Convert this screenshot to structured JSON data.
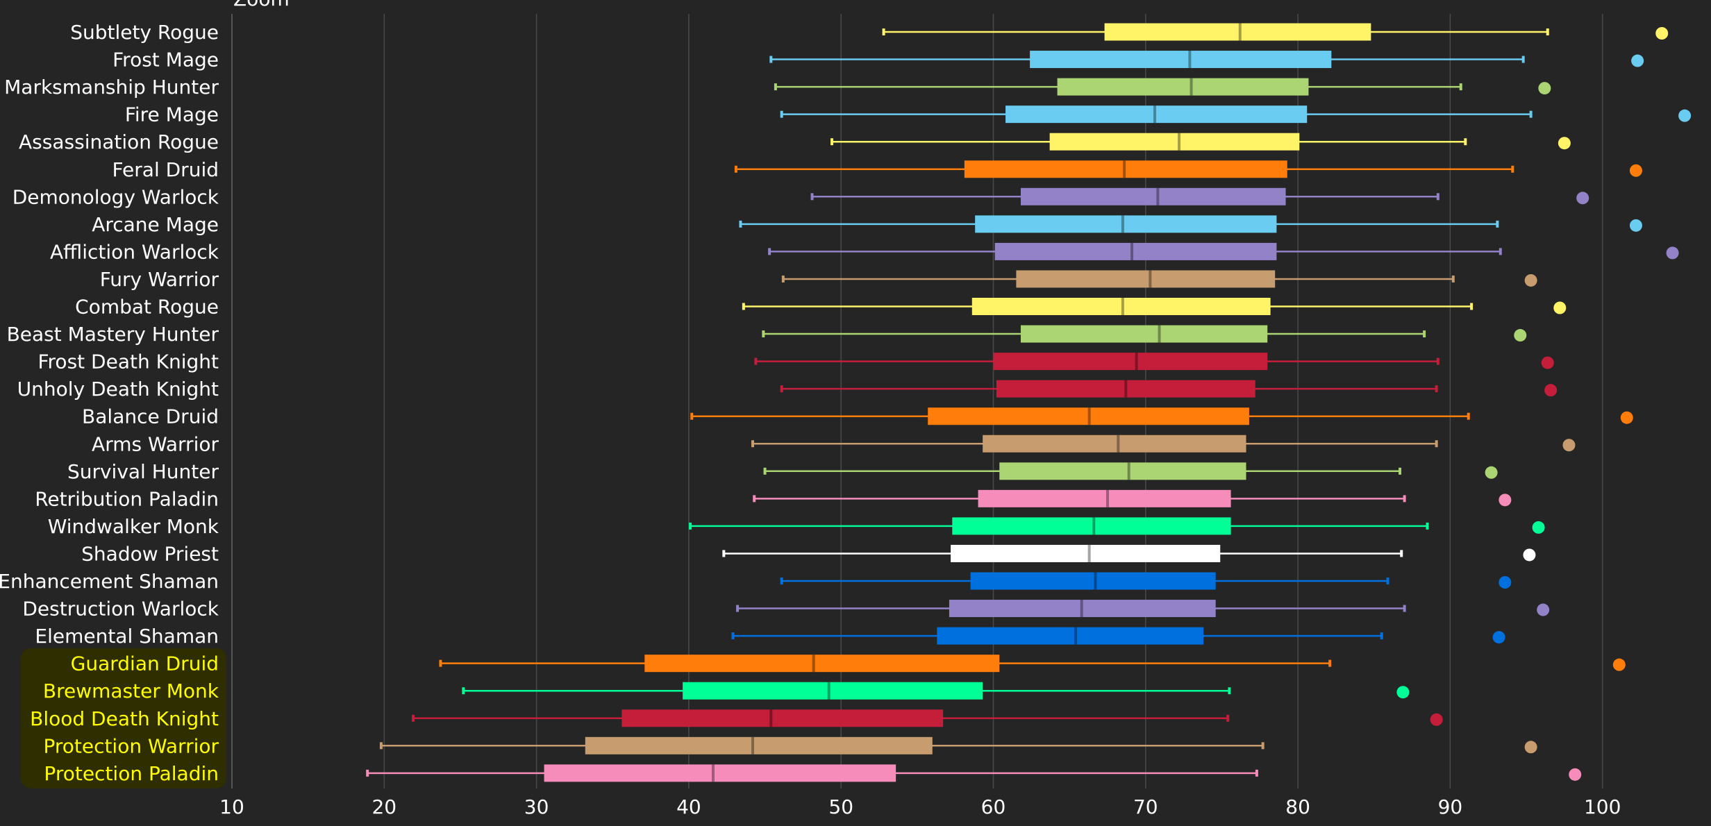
{
  "chart_data": {
    "type": "boxplot",
    "top_label": "Zoom",
    "title": "",
    "xlabel": "",
    "ylabel": "",
    "xlim": [
      10,
      102
    ],
    "x_ticks": [
      10,
      20,
      30,
      40,
      50,
      60,
      70,
      80,
      90,
      100
    ],
    "grid": true,
    "background": "#252525",
    "tank_highlight_color": "#2e2e00",
    "series": [
      {
        "name": "Subtlety Rogue",
        "color": "#fff468",
        "whisker_low": 52.8,
        "q1": 67.3,
        "median": 76.2,
        "q3": 84.8,
        "whisker_high": 96.4,
        "max": 103.9,
        "tank": false
      },
      {
        "name": "Frost Mage",
        "color": "#69ccf0",
        "whisker_low": 45.4,
        "q1": 62.4,
        "median": 72.9,
        "q3": 82.2,
        "whisker_high": 94.8,
        "max": 102.3,
        "tank": false
      },
      {
        "name": "Marksmanship Hunter",
        "color": "#abd473",
        "whisker_low": 45.7,
        "q1": 64.2,
        "median": 73.0,
        "q3": 80.7,
        "whisker_high": 90.7,
        "max": 96.2,
        "tank": false
      },
      {
        "name": "Fire Mage",
        "color": "#69ccf0",
        "whisker_low": 46.1,
        "q1": 60.8,
        "median": 70.6,
        "q3": 80.6,
        "whisker_high": 95.3,
        "max": 105.4,
        "tank": false
      },
      {
        "name": "Assassination Rogue",
        "color": "#fff468",
        "whisker_low": 49.4,
        "q1": 63.7,
        "median": 72.2,
        "q3": 80.1,
        "whisker_high": 91.0,
        "max": 97.5,
        "tank": false
      },
      {
        "name": "Feral Druid",
        "color": "#ff7d0a",
        "whisker_low": 43.1,
        "q1": 58.1,
        "median": 68.6,
        "q3": 79.3,
        "whisker_high": 94.1,
        "max": 102.2,
        "tank": false
      },
      {
        "name": "Demonology Warlock",
        "color": "#9482c9",
        "whisker_low": 48.1,
        "q1": 61.8,
        "median": 70.8,
        "q3": 79.2,
        "whisker_high": 89.2,
        "max": 98.7,
        "tank": false
      },
      {
        "name": "Arcane Mage",
        "color": "#69ccf0",
        "whisker_low": 43.4,
        "q1": 58.8,
        "median": 68.5,
        "q3": 78.6,
        "whisker_high": 93.1,
        "max": 102.2,
        "tank": false
      },
      {
        "name": "Affliction Warlock",
        "color": "#9482c9",
        "whisker_low": 45.3,
        "q1": 60.1,
        "median": 69.1,
        "q3": 78.6,
        "whisker_high": 93.3,
        "max": 104.6,
        "tank": false
      },
      {
        "name": "Fury Warrior",
        "color": "#c79c6e",
        "whisker_low": 46.2,
        "q1": 61.5,
        "median": 70.3,
        "q3": 78.5,
        "whisker_high": 90.2,
        "max": 95.3,
        "tank": false
      },
      {
        "name": "Combat Rogue",
        "color": "#fff468",
        "whisker_low": 43.6,
        "q1": 58.6,
        "median": 68.5,
        "q3": 78.2,
        "whisker_high": 91.4,
        "max": 97.2,
        "tank": false
      },
      {
        "name": "Beast Mastery Hunter",
        "color": "#abd473",
        "whisker_low": 44.9,
        "q1": 61.8,
        "median": 70.9,
        "q3": 78.0,
        "whisker_high": 88.3,
        "max": 94.6,
        "tank": false
      },
      {
        "name": "Frost Death Knight",
        "color": "#c41e3a",
        "whisker_low": 44.4,
        "q1": 60.0,
        "median": 69.4,
        "q3": 78.0,
        "whisker_high": 89.2,
        "max": 96.4,
        "tank": false
      },
      {
        "name": "Unholy Death Knight",
        "color": "#c41e3a",
        "whisker_low": 46.1,
        "q1": 60.2,
        "median": 68.7,
        "q3": 77.2,
        "whisker_high": 89.1,
        "max": 96.6,
        "tank": false
      },
      {
        "name": "Balance Druid",
        "color": "#ff7d0a",
        "whisker_low": 40.2,
        "q1": 55.7,
        "median": 66.3,
        "q3": 76.8,
        "whisker_high": 91.2,
        "max": 101.6,
        "tank": false
      },
      {
        "name": "Arms Warrior",
        "color": "#c79c6e",
        "whisker_low": 44.2,
        "q1": 59.3,
        "median": 68.2,
        "q3": 76.6,
        "whisker_high": 89.1,
        "max": 97.8,
        "tank": false
      },
      {
        "name": "Survival Hunter",
        "color": "#abd473",
        "whisker_low": 45.0,
        "q1": 60.4,
        "median": 68.9,
        "q3": 76.6,
        "whisker_high": 86.7,
        "max": 92.7,
        "tank": false
      },
      {
        "name": "Retribution Paladin",
        "color": "#f58cba",
        "whisker_low": 44.3,
        "q1": 59.0,
        "median": 67.5,
        "q3": 75.6,
        "whisker_high": 87.0,
        "max": 93.6,
        "tank": false
      },
      {
        "name": "Windwalker Monk",
        "color": "#00ff96",
        "whisker_low": 40.1,
        "q1": 57.3,
        "median": 66.6,
        "q3": 75.6,
        "whisker_high": 88.5,
        "max": 95.8,
        "tank": false
      },
      {
        "name": "Shadow Priest",
        "color": "#ffffff",
        "whisker_low": 42.3,
        "q1": 57.2,
        "median": 66.3,
        "q3": 74.9,
        "whisker_high": 86.8,
        "max": 95.2,
        "tank": false
      },
      {
        "name": "Enhancement Shaman",
        "color": "#0070de",
        "whisker_low": 46.1,
        "q1": 58.5,
        "median": 66.7,
        "q3": 74.6,
        "whisker_high": 85.9,
        "max": 93.6,
        "tank": false
      },
      {
        "name": "Destruction Warlock",
        "color": "#9482c9",
        "whisker_low": 43.2,
        "q1": 57.1,
        "median": 65.8,
        "q3": 74.6,
        "whisker_high": 87.0,
        "max": 96.1,
        "tank": false
      },
      {
        "name": "Elemental Shaman",
        "color": "#0070de",
        "whisker_low": 42.9,
        "q1": 56.3,
        "median": 65.4,
        "q3": 73.8,
        "whisker_high": 85.5,
        "max": 93.2,
        "tank": false
      },
      {
        "name": "Guardian Druid",
        "color": "#ff7d0a",
        "whisker_low": 23.7,
        "q1": 37.1,
        "median": 48.2,
        "q3": 60.4,
        "whisker_high": 82.1,
        "max": 101.1,
        "tank": true
      },
      {
        "name": "Brewmaster Monk",
        "color": "#00ff96",
        "whisker_low": 25.2,
        "q1": 39.6,
        "median": 49.2,
        "q3": 59.3,
        "whisker_high": 75.5,
        "max": 86.9,
        "tank": true
      },
      {
        "name": "Blood Death Knight",
        "color": "#c41e3a",
        "whisker_low": 21.9,
        "q1": 35.6,
        "median": 45.4,
        "q3": 56.7,
        "whisker_high": 75.4,
        "max": 89.1,
        "tank": true
      },
      {
        "name": "Protection Warrior",
        "color": "#c79c6e",
        "whisker_low": 19.8,
        "q1": 33.2,
        "median": 44.2,
        "q3": 56.0,
        "whisker_high": 77.7,
        "max": 95.3,
        "tank": true
      },
      {
        "name": "Protection Paladin",
        "color": "#f58cba",
        "whisker_low": 18.9,
        "q1": 30.5,
        "median": 41.6,
        "q3": 53.6,
        "whisker_high": 77.3,
        "max": 98.2,
        "tank": true
      }
    ]
  }
}
